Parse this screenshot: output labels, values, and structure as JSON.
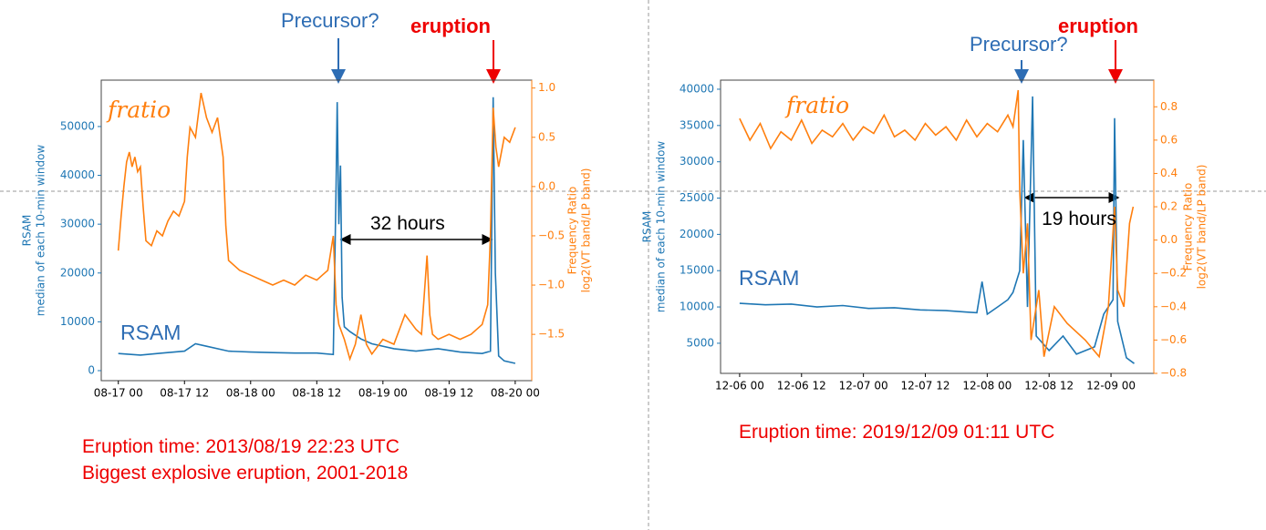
{
  "chart_data": [
    {
      "type": "line",
      "ylabel": [
        "RSAM",
        "median of each 10-min window"
      ],
      "y2label": [
        "Frequency Ratio",
        "log2(VT band/LP band)"
      ],
      "annotations": [
        "Precursor?",
        "eruption",
        "32 hours"
      ],
      "captions": [
        "Eruption time: 2013/08/19 22:23 UTC",
        "Biggest explosive eruption, 2001-2018"
      ],
      "xlim": [
        -3.1,
        75
      ],
      "xticks": [
        {
          "value": 0,
          "label": "08-17 00"
        },
        {
          "value": 12,
          "label": "08-17 12"
        },
        {
          "value": 24,
          "label": "08-18 00"
        },
        {
          "value": 36,
          "label": "08-18 12"
        },
        {
          "value": 48,
          "label": "08-19 00"
        },
        {
          "value": 60,
          "label": "08-19 12"
        },
        {
          "value": 72,
          "label": "08-20 00"
        }
      ],
      "ylim": [
        -2050,
        59500
      ],
      "yticks": [
        0,
        10000,
        20000,
        30000,
        40000,
        50000
      ],
      "y2lim": [
        -1.97,
        1.08
      ],
      "y2ticks": [
        {
          "value": -1.5,
          "label": "−1.5"
        },
        {
          "value": -1,
          "label": "−1.0"
        },
        {
          "value": -0.5,
          "label": "−0.5"
        },
        {
          "value": 0,
          "label": "0.0"
        },
        0.5,
        {
          "value": 1,
          "label": "1.0"
        }
      ],
      "series": [
        {
          "name": "RSAM",
          "color": "#1f77b4",
          "axis": "y",
          "x": [
            0,
            4,
            8,
            12,
            14,
            16,
            20,
            24,
            28,
            32,
            36,
            39,
            39.5,
            39.7,
            40,
            40.3,
            40.6,
            41,
            42,
            44,
            46,
            50,
            54,
            58,
            62,
            66,
            67.5,
            68,
            68.4,
            69,
            70,
            72
          ],
          "values": [
            3500,
            3200,
            3600,
            4000,
            5500,
            5000,
            4000,
            3800,
            3700,
            3600,
            3600,
            3300,
            38000,
            55000,
            30000,
            42000,
            15000,
            9000,
            8000,
            6500,
            5500,
            4500,
            4000,
            4500,
            3800,
            3500,
            4000,
            56000,
            20000,
            3000,
            2000,
            1500
          ]
        },
        {
          "name": "fratio",
          "color": "#ff7f0e",
          "axis": "y2",
          "x": [
            0,
            0.5,
            1,
            1.5,
            2,
            2.5,
            3,
            3.5,
            4,
            4.5,
            5,
            6,
            7,
            8,
            9,
            10,
            11,
            12,
            12.5,
            13,
            14,
            15,
            16,
            17,
            18,
            19,
            19.5,
            20,
            22,
            24,
            26,
            28,
            30,
            32,
            34,
            36,
            37,
            38,
            39,
            39.5,
            40,
            41,
            42,
            43,
            44,
            45,
            46,
            48,
            50,
            52,
            54,
            55,
            56,
            56.5,
            57,
            58,
            60,
            62,
            64,
            66,
            67,
            67.5,
            68,
            68.5,
            69,
            70,
            71,
            72
          ],
          "values": [
            -0.65,
            -0.3,
            0.0,
            0.25,
            0.35,
            0.2,
            0.3,
            0.15,
            0.2,
            -0.2,
            -0.55,
            -0.6,
            -0.45,
            -0.5,
            -0.35,
            -0.25,
            -0.3,
            -0.15,
            0.3,
            0.6,
            0.5,
            0.95,
            0.7,
            0.55,
            0.7,
            0.3,
            -0.4,
            -0.75,
            -0.85,
            -0.9,
            -0.95,
            -1.0,
            -0.95,
            -1.0,
            -0.9,
            -0.95,
            -0.9,
            -0.85,
            -0.5,
            -1.2,
            -1.4,
            -1.55,
            -1.75,
            -1.6,
            -1.3,
            -1.6,
            -1.7,
            -1.55,
            -1.6,
            -1.3,
            -1.45,
            -1.5,
            -0.7,
            -1.3,
            -1.5,
            -1.55,
            -1.5,
            -1.55,
            -1.5,
            -1.4,
            -1.2,
            -0.5,
            0.8,
            0.4,
            0.2,
            0.5,
            0.45,
            0.6
          ]
        }
      ]
    },
    {
      "type": "line",
      "ylabel": [
        "RSAM",
        "median of each 10-min window"
      ],
      "y2label": [
        "Frequency Ratio",
        "log2(VT band/LP band)"
      ],
      "annotations": [
        "Precursor?",
        "eruption",
        "19 hours"
      ],
      "captions": [
        "Eruption time: 2019/12/09 01:11 UTC"
      ],
      "xlim": [
        -3.7,
        80.3
      ],
      "xticks": [
        {
          "value": 0,
          "label": "12-06 00"
        },
        {
          "value": 12,
          "label": "12-06 12"
        },
        {
          "value": 24,
          "label": "12-07 00"
        },
        {
          "value": 36,
          "label": "12-07 12"
        },
        {
          "value": 48,
          "label": "12-08 00"
        },
        {
          "value": 60,
          "label": "12-08 12"
        },
        {
          "value": 72,
          "label": "12-09 00"
        }
      ],
      "ylim": [
        850,
        41250
      ],
      "yticks": [
        5000,
        10000,
        15000,
        20000,
        25000,
        30000,
        35000,
        40000
      ],
      "y2lim": [
        -0.8,
        0.96
      ],
      "y2ticks": [
        {
          "value": -0.8,
          "label": "−0.8"
        },
        {
          "value": -0.6,
          "label": "−0.6"
        },
        {
          "value": -0.4,
          "label": "−0.4"
        },
        {
          "value": -0.2,
          "label": "−0.2"
        },
        {
          "value": 0,
          "label": "0.0"
        },
        0.2,
        0.4,
        0.6,
        0.8
      ],
      "series": [
        {
          "name": "RSAM",
          "color": "#1f77b4",
          "axis": "y",
          "x": [
            0,
            5,
            10,
            15,
            20,
            25,
            30,
            35,
            40,
            44,
            46,
            47,
            48,
            50,
            52,
            53,
            54.3,
            55,
            55.8,
            56.8,
            57.5,
            60,
            62.7,
            65.3,
            68.8,
            70.6,
            72.4,
            72.7,
            73.3,
            75,
            76.5
          ],
          "values": [
            10500,
            10300,
            10400,
            10000,
            10200,
            9800,
            9900,
            9600,
            9500,
            9300,
            9200,
            13500,
            9000,
            10000,
            11000,
            12000,
            15000,
            33000,
            10000,
            39000,
            6000,
            4000,
            6000,
            3500,
            4500,
            9000,
            11000,
            36000,
            8000,
            3000,
            2200
          ]
        },
        {
          "name": "fratio",
          "color": "#ff7f0e",
          "axis": "y2",
          "x": [
            0,
            2,
            4,
            6,
            8,
            10,
            12,
            14,
            16,
            18,
            20,
            22,
            24,
            26,
            28,
            30,
            32,
            34,
            36,
            38,
            40,
            42,
            44,
            46,
            48,
            50,
            52,
            53,
            54,
            54.3,
            55,
            55.8,
            56.5,
            58,
            59,
            61,
            63.5,
            67,
            69.7,
            71.5,
            72.7,
            73.3,
            74.5,
            75.6,
            76.3
          ],
          "values": [
            0.73,
            0.6,
            0.7,
            0.55,
            0.65,
            0.6,
            0.72,
            0.58,
            0.66,
            0.62,
            0.7,
            0.6,
            0.68,
            0.64,
            0.75,
            0.62,
            0.66,
            0.6,
            0.7,
            0.63,
            0.68,
            0.6,
            0.72,
            0.62,
            0.7,
            0.65,
            0.75,
            0.68,
            0.9,
            0.3,
            -0.2,
            0.1,
            -0.6,
            -0.3,
            -0.7,
            -0.4,
            -0.5,
            -0.6,
            -0.7,
            -0.4,
            0.2,
            -0.3,
            -0.4,
            0.1,
            0.2
          ]
        }
      ]
    }
  ]
}
